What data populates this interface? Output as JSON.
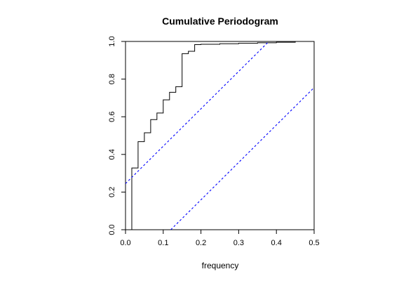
{
  "chart_data": {
    "type": "line",
    "title": "Cumulative Periodogram",
    "xlabel": "frequency",
    "ylabel": "",
    "xlim": [
      0,
      0.5
    ],
    "ylim": [
      0,
      1
    ],
    "x_ticks": [
      "0.0",
      "0.1",
      "0.2",
      "0.3",
      "0.4",
      "0.5"
    ],
    "y_ticks": [
      "0.0",
      "0.2",
      "0.4",
      "0.6",
      "0.8",
      "1.0"
    ],
    "grid": false,
    "series": [
      {
        "kind": "step",
        "color": "#000000",
        "points": [
          [
            0.0,
            0.0
          ],
          [
            0.0167,
            0.0
          ],
          [
            0.0167,
            0.328
          ],
          [
            0.0333,
            0.328
          ],
          [
            0.0333,
            0.468
          ],
          [
            0.05,
            0.468
          ],
          [
            0.05,
            0.515
          ],
          [
            0.0667,
            0.515
          ],
          [
            0.0667,
            0.585
          ],
          [
            0.0833,
            0.585
          ],
          [
            0.0833,
            0.62
          ],
          [
            0.1,
            0.62
          ],
          [
            0.1,
            0.69
          ],
          [
            0.1167,
            0.69
          ],
          [
            0.1167,
            0.73
          ],
          [
            0.1333,
            0.73
          ],
          [
            0.1333,
            0.76
          ],
          [
            0.15,
            0.76
          ],
          [
            0.15,
            0.935
          ],
          [
            0.1667,
            0.935
          ],
          [
            0.1667,
            0.948
          ],
          [
            0.1833,
            0.948
          ],
          [
            0.1833,
            0.983
          ],
          [
            0.2,
            0.983
          ],
          [
            0.2,
            0.985
          ],
          [
            0.25,
            0.985
          ],
          [
            0.25,
            0.988
          ],
          [
            0.3,
            0.988
          ],
          [
            0.3,
            0.99
          ],
          [
            0.35,
            0.99
          ],
          [
            0.35,
            0.993
          ],
          [
            0.4,
            0.993
          ],
          [
            0.4,
            0.996
          ],
          [
            0.45,
            0.996
          ],
          [
            0.45,
            1.0
          ],
          [
            0.5,
            1.0
          ]
        ]
      },
      {
        "kind": "dashed",
        "color": "#0000ff",
        "points": [
          [
            0.0,
            0.245
          ],
          [
            0.38,
            1.0
          ]
        ]
      },
      {
        "kind": "dashed",
        "color": "#0000ff",
        "points": [
          [
            0.12,
            0.0
          ],
          [
            0.5,
            0.755
          ]
        ]
      }
    ]
  }
}
